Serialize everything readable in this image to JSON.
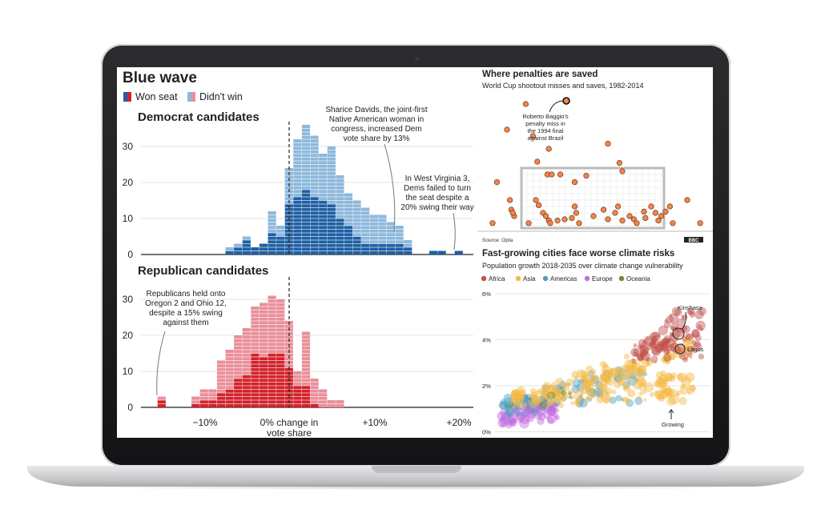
{
  "colors": {
    "dem_won": "#1f5fa3",
    "dem_lost": "#8db8dc",
    "rep_won": "#d3222a",
    "rep_lost": "#ea8f99",
    "penalty": "#f0844a",
    "africa": "#c0504d",
    "asia": "#f4b942",
    "americas": "#4d9dc4",
    "europe": "#c46be0",
    "oceania": "#6c8a3a"
  },
  "left": {
    "title": "Blue wave",
    "legend": {
      "won": "Won seat",
      "lost": "Didn't win"
    },
    "xticks": [
      "−10%",
      "0% change in",
      "vote share",
      "+10%",
      "+20%"
    ],
    "dem": {
      "heading": "Democrat candidates",
      "yticks": [
        "30",
        "20",
        "10",
        "0"
      ],
      "ann1": [
        "Sharice Davids, the joint-first",
        "Native American woman in",
        "congress, increased Dem",
        "vote share by 13%"
      ],
      "ann2": [
        "In West Virginia 3,",
        "Dems failed to turn",
        "the seat despite a",
        "20% swing their way"
      ]
    },
    "rep": {
      "heading": "Republican candidates",
      "yticks": [
        "30",
        "20",
        "10",
        "0"
      ],
      "ann1": [
        "Republicans held onto",
        "Oregon 2 and Ohio 12,",
        "despite a 15% swing",
        "against them"
      ]
    }
  },
  "chart_data": [
    {
      "type": "bar",
      "title": "Democrat candidates",
      "ylim": [
        0,
        30
      ],
      "x": [
        -7,
        -6,
        -5,
        -4,
        -3,
        -2,
        -1,
        0,
        1,
        2,
        3,
        4,
        5,
        6,
        7,
        8,
        9,
        10,
        11,
        12,
        13,
        14,
        15,
        16,
        17,
        18,
        19,
        20
      ],
      "series": [
        {
          "name": "Won seat",
          "values": [
            1,
            2,
            4,
            2,
            3,
            6,
            5,
            14,
            16,
            18,
            16,
            15,
            14,
            10,
            8,
            5,
            3,
            3,
            3,
            3,
            3,
            2,
            0,
            0,
            1,
            1,
            0,
            1
          ]
        },
        {
          "name": "Didn't win",
          "values": [
            1,
            1,
            1,
            0,
            0,
            6,
            3,
            10,
            16,
            18,
            17,
            13,
            16,
            12,
            9,
            10,
            10,
            8,
            8,
            6,
            5,
            2,
            0,
            0,
            0,
            0,
            0,
            0
          ]
        }
      ]
    },
    {
      "type": "bar",
      "title": "Republican candidates",
      "ylim": [
        0,
        30
      ],
      "x": [
        -15,
        -14,
        -13,
        -12,
        -11,
        -10,
        -9,
        -8,
        -7,
        -6,
        -5,
        -4,
        -3,
        -2,
        -1,
        0,
        1,
        2,
        3,
        4,
        5,
        6,
        7
      ],
      "series": [
        {
          "name": "Won seat",
          "values": [
            2,
            0,
            0,
            0,
            1,
            2,
            2,
            4,
            5,
            8,
            9,
            15,
            14,
            15,
            15,
            11,
            6,
            6,
            1,
            0,
            0,
            0,
            0
          ]
        },
        {
          "name": "Didn't win",
          "values": [
            1,
            0,
            0,
            0,
            2,
            3,
            3,
            9,
            11,
            12,
            13,
            13,
            15,
            16,
            15,
            13,
            4,
            15,
            7,
            5,
            2,
            2,
            0
          ]
        }
      ]
    },
    {
      "type": "scatter",
      "title": "Where penalties are saved",
      "subtitle": "World Cup shootout misses and saves, 1982-2014",
      "annotation": [
        "Roberto Baggio's",
        "penalty miss in",
        "the 1994 final",
        "against Brazil"
      ],
      "source": "Source: Opta",
      "logo": "BBC",
      "points": [
        [
          28,
          -10
        ],
        [
          15,
          30
        ],
        [
          33,
          40
        ],
        [
          44,
          60
        ],
        [
          36,
          80
        ],
        [
          93,
          82
        ],
        [
          43,
          100
        ],
        [
          85,
          52
        ],
        [
          8,
          112
        ],
        [
          62,
          112
        ],
        [
          5,
          176
        ],
        [
          149,
          176
        ],
        [
          17,
          140
        ],
        [
          18,
          155
        ],
        [
          20,
          165
        ],
        [
          19,
          160
        ],
        [
          35,
          140
        ],
        [
          37,
          148
        ],
        [
          40,
          160
        ],
        [
          42,
          165
        ],
        [
          44,
          172
        ],
        [
          30,
          176
        ],
        [
          45,
          176
        ],
        [
          50,
          172
        ],
        [
          55,
          170
        ],
        [
          60,
          168
        ],
        [
          63,
          160
        ],
        [
          62,
          150
        ],
        [
          65,
          176
        ],
        [
          75,
          165
        ],
        [
          82,
          155
        ],
        [
          85,
          170
        ],
        [
          90,
          160
        ],
        [
          92,
          150
        ],
        [
          95,
          172
        ],
        [
          100,
          165
        ],
        [
          103,
          170
        ],
        [
          105,
          176
        ],
        [
          110,
          158
        ],
        [
          111,
          168
        ],
        [
          115,
          150
        ],
        [
          118,
          160
        ],
        [
          120,
          172
        ],
        [
          122,
          165
        ],
        [
          125,
          158
        ],
        [
          128,
          150
        ],
        [
          130,
          176
        ],
        [
          46,
          100
        ],
        [
          52,
          100
        ],
        [
          70,
          102
        ],
        [
          95,
          95
        ],
        [
          140,
          140
        ]
      ]
    },
    {
      "type": "scatter",
      "title": "Fast-growing cities face worse climate risks",
      "subtitle": "Population growth 2018-2035 over climate change vulnerability",
      "legend": [
        "Africa",
        "Asia",
        "Americas",
        "Europe",
        "Oceania"
      ],
      "yticks": [
        "6%",
        "4%",
        "2%",
        "0%"
      ],
      "labels": {
        "kinshasa": "Kinshasa",
        "lagos": "Lagos",
        "growing": "Growing"
      }
    }
  ]
}
